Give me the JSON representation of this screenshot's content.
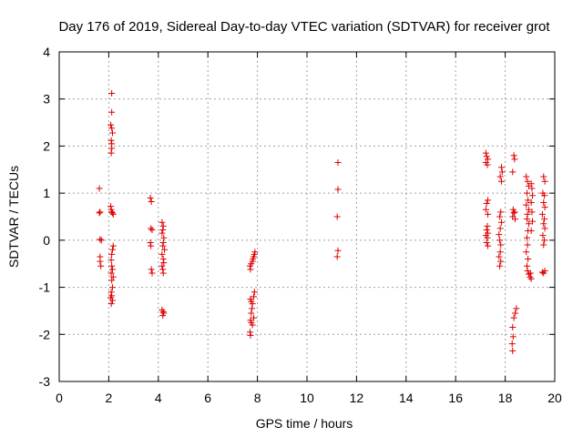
{
  "chart_data": {
    "type": "scatter",
    "title": "Day 176 of 2019, Sidereal Day-to-day VTEC variation (SDTVAR) for receiver grot",
    "xlabel": "GPS time / hours",
    "ylabel": "SDTVAR / TECUs",
    "xlim": [
      0,
      20
    ],
    "ylim": [
      -3,
      4
    ],
    "xticks": [
      "0",
      "2",
      "4",
      "6",
      "8",
      "10",
      "12",
      "14",
      "16",
      "18",
      "20"
    ],
    "yticks": [
      "-3",
      "-2",
      "-1",
      "0",
      "1",
      "2",
      "3",
      "4"
    ],
    "grid": true,
    "marker": "plus",
    "color": "#dd0000",
    "series": [
      {
        "name": "SDTVAR",
        "points": [
          [
            1.62,
            1.1
          ],
          [
            1.62,
            0.58
          ],
          [
            1.65,
            0.6
          ],
          [
            1.65,
            0.02
          ],
          [
            1.7,
            0.0
          ],
          [
            1.65,
            -0.35
          ],
          [
            1.65,
            -0.45
          ],
          [
            1.68,
            -0.55
          ],
          [
            2.12,
            3.12
          ],
          [
            2.12,
            2.72
          ],
          [
            2.08,
            2.45
          ],
          [
            2.12,
            2.38
          ],
          [
            2.15,
            2.28
          ],
          [
            2.1,
            2.12
          ],
          [
            2.12,
            2.05
          ],
          [
            2.12,
            1.95
          ],
          [
            2.1,
            1.85
          ],
          [
            2.08,
            0.72
          ],
          [
            2.1,
            0.65
          ],
          [
            2.12,
            0.6
          ],
          [
            2.15,
            0.58
          ],
          [
            2.18,
            0.55
          ],
          [
            2.18,
            -0.12
          ],
          [
            2.15,
            -0.2
          ],
          [
            2.12,
            -0.3
          ],
          [
            2.1,
            -0.42
          ],
          [
            2.12,
            -0.55
          ],
          [
            2.15,
            -0.62
          ],
          [
            2.1,
            -0.7
          ],
          [
            2.18,
            -0.78
          ],
          [
            2.12,
            -0.85
          ],
          [
            2.15,
            -1.0
          ],
          [
            2.1,
            -1.1
          ],
          [
            2.12,
            -1.18
          ],
          [
            2.08,
            -1.22
          ],
          [
            2.15,
            -1.28
          ],
          [
            2.1,
            -1.35
          ],
          [
            3.68,
            0.9
          ],
          [
            3.72,
            0.82
          ],
          [
            3.7,
            0.25
          ],
          [
            3.75,
            0.22
          ],
          [
            3.68,
            -0.05
          ],
          [
            3.7,
            -0.12
          ],
          [
            3.72,
            -0.62
          ],
          [
            3.75,
            -0.7
          ],
          [
            4.15,
            0.38
          ],
          [
            4.2,
            0.3
          ],
          [
            4.18,
            0.22
          ],
          [
            4.15,
            0.15
          ],
          [
            4.22,
            0.05
          ],
          [
            4.2,
            -0.05
          ],
          [
            4.18,
            -0.12
          ],
          [
            4.25,
            -0.2
          ],
          [
            4.15,
            -0.3
          ],
          [
            4.2,
            -0.4
          ],
          [
            4.22,
            -0.48
          ],
          [
            4.15,
            -0.55
          ],
          [
            4.18,
            -0.62
          ],
          [
            4.2,
            -0.7
          ],
          [
            4.15,
            -1.48
          ],
          [
            4.2,
            -1.52
          ],
          [
            4.22,
            -1.55
          ],
          [
            4.18,
            -1.6
          ],
          [
            7.7,
            -0.55
          ],
          [
            7.75,
            -0.5
          ],
          [
            7.8,
            -0.45
          ],
          [
            7.82,
            -0.4
          ],
          [
            7.85,
            -0.35
          ],
          [
            7.88,
            -0.3
          ],
          [
            7.9,
            -0.25
          ],
          [
            7.72,
            -0.62
          ],
          [
            7.72,
            -1.25
          ],
          [
            7.75,
            -1.3
          ],
          [
            7.8,
            -1.35
          ],
          [
            7.85,
            -1.2
          ],
          [
            7.88,
            -1.1
          ],
          [
            7.78,
            -1.45
          ],
          [
            7.75,
            -1.55
          ],
          [
            7.72,
            -1.7
          ],
          [
            7.75,
            -1.75
          ],
          [
            7.8,
            -1.8
          ],
          [
            7.85,
            -1.65
          ],
          [
            7.7,
            -1.95
          ],
          [
            7.72,
            -2.02
          ],
          [
            11.25,
            1.65
          ],
          [
            11.25,
            1.08
          ],
          [
            11.22,
            0.5
          ],
          [
            11.25,
            -0.22
          ],
          [
            11.22,
            -0.35
          ],
          [
            17.22,
            1.85
          ],
          [
            17.25,
            1.78
          ],
          [
            17.3,
            1.72
          ],
          [
            17.22,
            1.65
          ],
          [
            17.28,
            1.6
          ],
          [
            17.3,
            0.85
          ],
          [
            17.25,
            0.78
          ],
          [
            17.22,
            0.65
          ],
          [
            17.3,
            0.55
          ],
          [
            17.28,
            0.3
          ],
          [
            17.25,
            0.22
          ],
          [
            17.3,
            0.15
          ],
          [
            17.22,
            0.1
          ],
          [
            17.28,
            0.05
          ],
          [
            17.25,
            -0.05
          ],
          [
            17.3,
            -0.12
          ],
          [
            17.85,
            1.55
          ],
          [
            17.88,
            1.45
          ],
          [
            17.8,
            1.35
          ],
          [
            17.85,
            1.25
          ],
          [
            17.82,
            0.6
          ],
          [
            17.78,
            0.5
          ],
          [
            17.85,
            0.38
          ],
          [
            17.8,
            0.25
          ],
          [
            17.75,
            0.12
          ],
          [
            17.78,
            0.0
          ],
          [
            17.82,
            -0.1
          ],
          [
            17.8,
            -0.25
          ],
          [
            17.75,
            -0.35
          ],
          [
            17.82,
            -0.45
          ],
          [
            17.78,
            -0.55
          ],
          [
            18.35,
            1.8
          ],
          [
            18.38,
            1.72
          ],
          [
            18.3,
            1.45
          ],
          [
            18.32,
            0.65
          ],
          [
            18.35,
            0.58
          ],
          [
            18.3,
            0.5
          ],
          [
            18.4,
            0.45
          ],
          [
            18.38,
            0.6
          ],
          [
            18.45,
            -1.45
          ],
          [
            18.4,
            -1.55
          ],
          [
            18.35,
            -1.65
          ],
          [
            18.3,
            -1.85
          ],
          [
            18.32,
            -2.05
          ],
          [
            18.28,
            -2.2
          ],
          [
            18.3,
            -2.35
          ],
          [
            18.85,
            1.35
          ],
          [
            18.9,
            1.25
          ],
          [
            18.95,
            1.15
          ],
          [
            18.88,
            1.0
          ],
          [
            18.92,
            0.85
          ],
          [
            18.85,
            0.75
          ],
          [
            18.95,
            0.65
          ],
          [
            18.9,
            0.55
          ],
          [
            18.88,
            0.45
          ],
          [
            18.95,
            0.35
          ],
          [
            18.92,
            0.2
          ],
          [
            18.88,
            0.05
          ],
          [
            18.9,
            -0.1
          ],
          [
            18.85,
            -0.25
          ],
          [
            18.92,
            -0.4
          ],
          [
            18.88,
            -0.55
          ],
          [
            18.9,
            -0.65
          ],
          [
            18.95,
            -0.72
          ],
          [
            19.0,
            -0.78
          ],
          [
            19.05,
            -0.82
          ],
          [
            19.02,
            -0.7
          ],
          [
            19.05,
            1.2
          ],
          [
            19.08,
            1.1
          ],
          [
            19.1,
            0.95
          ],
          [
            19.05,
            0.8
          ],
          [
            19.08,
            0.6
          ],
          [
            19.1,
            0.4
          ],
          [
            19.05,
            0.2
          ],
          [
            19.55,
            1.35
          ],
          [
            19.6,
            1.25
          ],
          [
            19.52,
            1.0
          ],
          [
            19.58,
            0.95
          ],
          [
            19.55,
            0.8
          ],
          [
            19.6,
            0.7
          ],
          [
            19.5,
            0.55
          ],
          [
            19.58,
            0.45
          ],
          [
            19.55,
            0.35
          ],
          [
            19.6,
            0.25
          ],
          [
            19.52,
            0.1
          ],
          [
            19.58,
            0.0
          ],
          [
            19.55,
            -0.1
          ],
          [
            19.6,
            -0.65
          ],
          [
            19.55,
            -0.7
          ],
          [
            19.5,
            -0.68
          ]
        ]
      }
    ]
  }
}
